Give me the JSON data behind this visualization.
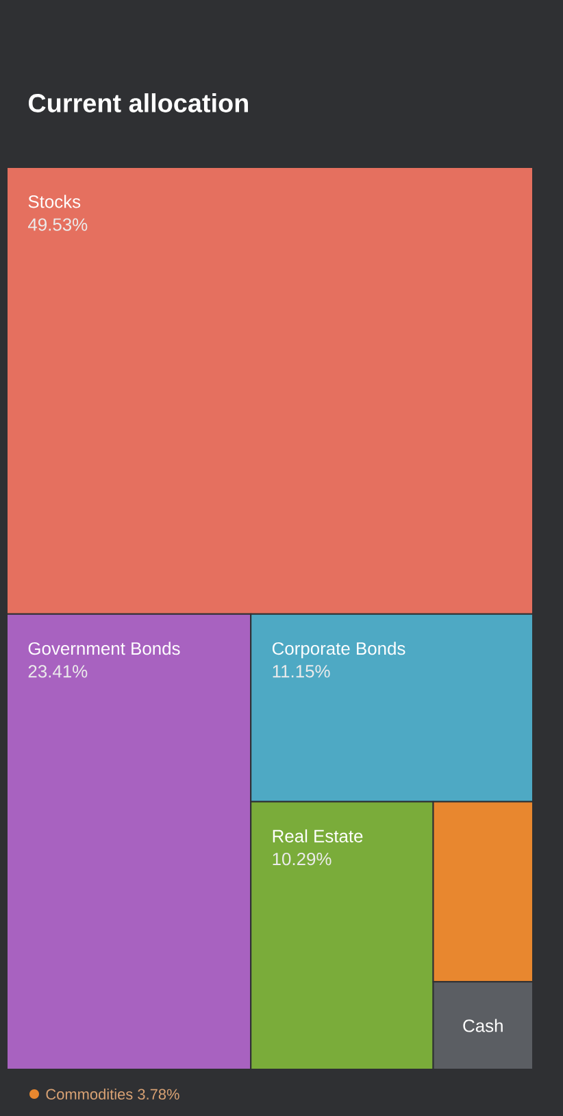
{
  "chart_data": {
    "type": "other",
    "title": "Current allocation",
    "categories": [
      "Stocks",
      "Government Bonds",
      "Corporate Bonds",
      "Real Estate",
      "Commodities",
      "Cash"
    ],
    "values": [
      49.53,
      23.41,
      11.15,
      10.29,
      3.78,
      null
    ],
    "value_labels": [
      "49.53%",
      "23.41%",
      "11.15%",
      "10.29%",
      "3.78%",
      null
    ],
    "colors": [
      "#e5705f",
      "#a862c0",
      "#4ea9c4",
      "#7aac3a",
      "#e8872f",
      "#5b5e63"
    ]
  }
}
